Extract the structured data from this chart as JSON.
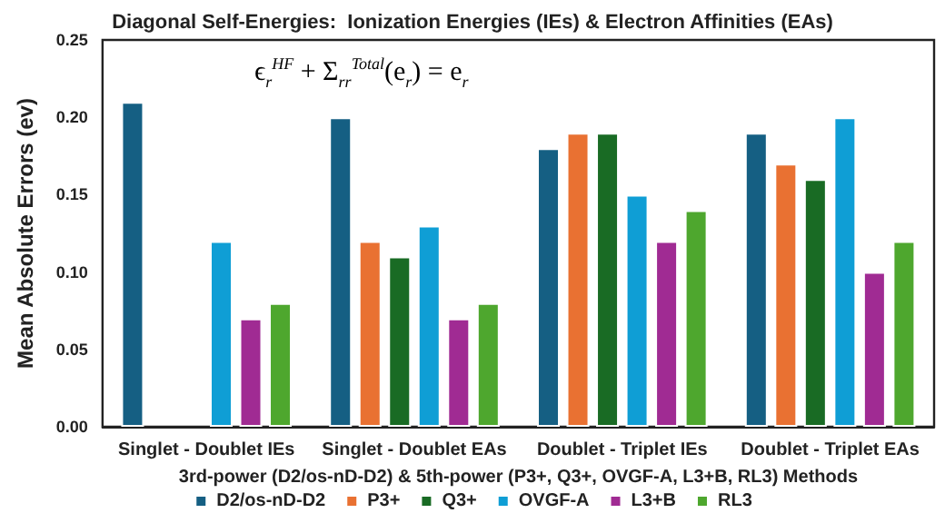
{
  "chart_data": {
    "type": "bar",
    "title": "Diagonal Self-Energies:  Ionization Energies (IEs) & Electron Affinities (EAs)",
    "xlabel": "3rd-power (D2/os-nD-D2) & 5th-power (P3+, Q3+, OVGF-A, L3+B, RL3) Methods",
    "ylabel": "Mean Absolute Errors (ev)",
    "annotations": [
      "ϵ$_{r}$$^{HF}$ + Σ$_{rr}$$^{Total}$(e$_{r}$) = e$_{r}$"
    ],
    "categories": [
      "Singlet - Doublet IEs",
      "Singlet - Doublet EAs",
      "Doublet - Triplet IEs",
      "Doublet - Triplet EAs"
    ],
    "series": [
      {
        "name": "D2/os-nD-D2",
        "color": "#155f83",
        "values": [
          0.21,
          0.2,
          0.18,
          0.19
        ]
      },
      {
        "name": "P3+",
        "color": "#e97132",
        "values": [
          null,
          0.12,
          0.19,
          0.17
        ]
      },
      {
        "name": "Q3+",
        "color": "#196b24",
        "values": [
          null,
          0.11,
          0.19,
          0.16
        ]
      },
      {
        "name": "OVGF-A",
        "color": "#0f9ed5",
        "values": [
          0.12,
          0.13,
          0.15,
          0.2
        ]
      },
      {
        "name": "L3+B",
        "color": "#a02b93",
        "values": [
          0.07,
          0.07,
          0.12,
          0.1
        ]
      },
      {
        "name": "RL3",
        "color": "#4ea72e",
        "values": [
          0.08,
          0.08,
          0.14,
          0.12
        ]
      }
    ],
    "ylim": [
      0,
      0.25
    ],
    "yticks": [
      {
        "value": 0,
        "label": "0.00"
      },
      0.05,
      {
        "value": 0.1,
        "label": "0.10"
      },
      0.15,
      {
        "value": 0.2,
        "label": "0.20"
      },
      0.25
    ],
    "grid": false,
    "legend": "bottom"
  }
}
